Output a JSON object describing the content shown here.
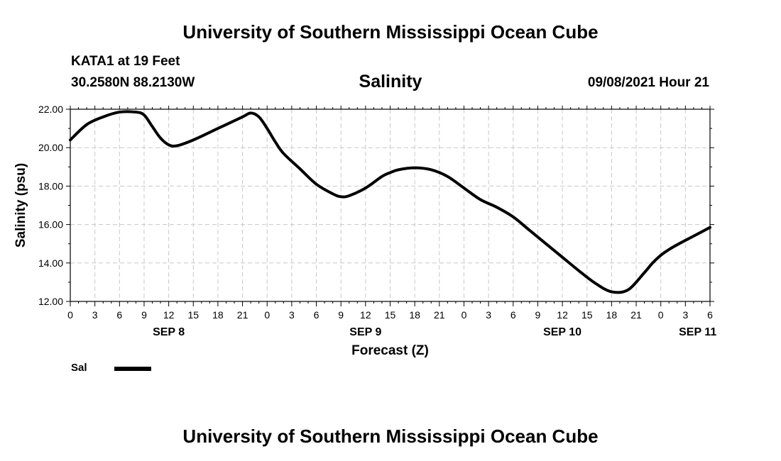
{
  "header": {
    "title": "University of Southern Mississippi Ocean Cube",
    "station": "KATA1 at 19 Feet",
    "coordinates": "30.2580N  88.2130W",
    "chart_title": "Salinity",
    "datetime": "09/08/2021 Hour 21"
  },
  "footer": {
    "title": "University of Southern Mississippi Ocean Cube"
  },
  "legend": {
    "label": "Sal"
  },
  "colors": {
    "line": "#000000",
    "grid": "#c8c8c8",
    "axis": "#000000"
  },
  "chart_data": {
    "type": "line",
    "title": "Salinity",
    "xlabel": "Forecast (Z)",
    "ylabel": "Salinity (psu)",
    "xlim": [
      0,
      78
    ],
    "ylim": [
      12,
      22
    ],
    "y_ticks": [
      12,
      14,
      16,
      18,
      20,
      22
    ],
    "y_tick_labels": [
      "12.00",
      "14.00",
      "16.00",
      "18.00",
      "20.00",
      "22.00"
    ],
    "x_ticks": [
      0,
      3,
      6,
      9,
      12,
      15,
      18,
      21,
      24,
      27,
      30,
      33,
      36,
      39,
      42,
      45,
      48,
      51,
      54,
      57,
      60,
      63,
      66,
      69,
      72,
      75,
      78
    ],
    "x_tick_labels": [
      "0",
      "3",
      "6",
      "9",
      "12",
      "15",
      "18",
      "21",
      "0",
      "3",
      "6",
      "9",
      "12",
      "15",
      "18",
      "21",
      "0",
      "3",
      "6",
      "9",
      "12",
      "15",
      "18",
      "21",
      "0",
      "3",
      "6"
    ],
    "day_labels": [
      {
        "label": "SEP 8",
        "at": 12
      },
      {
        "label": "SEP 9",
        "at": 36
      },
      {
        "label": "SEP 10",
        "at": 60
      },
      {
        "label": "SEP 11",
        "at": 76.5
      }
    ],
    "grid": true,
    "legend_position": "bottom-left",
    "series": [
      {
        "name": "Sal",
        "x": [
          0,
          2,
          4,
          6,
          8,
          9,
          10,
          11,
          12,
          13,
          15,
          18,
          21,
          22,
          23,
          24,
          25,
          26,
          28,
          30,
          32,
          33,
          34,
          36,
          38,
          39,
          40,
          42,
          44,
          46,
          48,
          50,
          52,
          54,
          56,
          58,
          60,
          62,
          64,
          66,
          68,
          70,
          71,
          72,
          73,
          74,
          76,
          78
        ],
        "y": [
          20.4,
          21.2,
          21.6,
          21.85,
          21.85,
          21.7,
          21.1,
          20.5,
          20.15,
          20.1,
          20.4,
          21.0,
          21.6,
          21.8,
          21.6,
          21.0,
          20.3,
          19.7,
          18.9,
          18.1,
          17.6,
          17.45,
          17.5,
          17.9,
          18.5,
          18.7,
          18.85,
          18.95,
          18.85,
          18.5,
          17.9,
          17.3,
          16.9,
          16.4,
          15.7,
          15.0,
          14.3,
          13.6,
          12.95,
          12.5,
          12.6,
          13.5,
          14.0,
          14.4,
          14.7,
          14.95,
          15.4,
          15.85
        ]
      }
    ]
  }
}
